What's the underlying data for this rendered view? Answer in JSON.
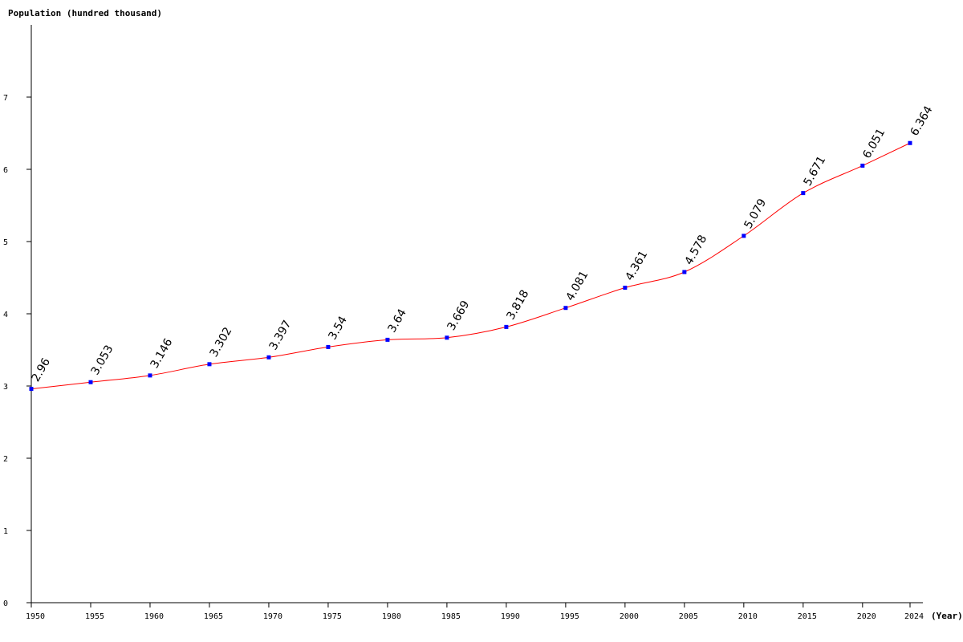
{
  "chart_data": {
    "type": "line",
    "ylabel": "Population (hundred thousand)",
    "xlabel": "(Year)",
    "x": [
      1950,
      1955,
      1960,
      1965,
      1970,
      1975,
      1980,
      1985,
      1990,
      1995,
      2000,
      2005,
      2010,
      2015,
      2020,
      2024
    ],
    "series": [
      {
        "values": [
          2.96,
          3.053,
          3.146,
          3.302,
          3.397,
          3.54,
          3.64,
          3.669,
          3.818,
          4.081,
          4.361,
          4.578,
          5.079,
          5.671,
          6.051,
          6.364
        ],
        "labels": [
          "2.96",
          "3.053",
          "3.146",
          "3.302",
          "3.397",
          "3.54",
          "3.64",
          "3.669",
          "3.818",
          "4.081",
          "4.361",
          "4.578",
          "5.079",
          "5.671",
          "6.051",
          "6.364"
        ]
      }
    ],
    "x_ticks": [
      "1950",
      "1955",
      "1960",
      "1965",
      "1970",
      "1975",
      "1980",
      "1985",
      "1990",
      "1995",
      "2000",
      "2005",
      "2010",
      "2015",
      "2020",
      "2024"
    ],
    "y_ticks": [
      "0",
      "1",
      "2",
      "3",
      "4",
      "5",
      "6",
      "7"
    ],
    "ylim": [
      0,
      8
    ],
    "xlim": [
      1950,
      2024
    ],
    "grid": false,
    "legend": "none",
    "colors": {
      "line": "#ff0000",
      "marker": "#0000ff",
      "axis": "#000000",
      "text": "#000000"
    }
  }
}
